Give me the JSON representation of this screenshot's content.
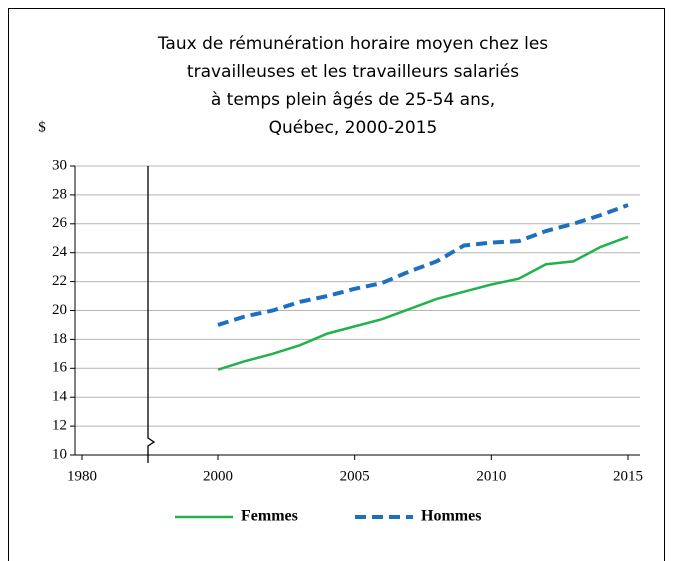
{
  "chart_data": {
    "type": "line",
    "title": [
      "Taux de rémunération horaire moyen chez les",
      "travailleuses et les travailleurs salariés",
      "à temps plein âgés de 25-54 ans,",
      "Québec, 2000-2015"
    ],
    "y_label": "$",
    "x": [
      2000,
      2001,
      2002,
      2003,
      2004,
      2005,
      2006,
      2007,
      2008,
      2009,
      2010,
      2011,
      2012,
      2013,
      2014,
      2015
    ],
    "series": [
      {
        "name": "Femmes",
        "color": "#21b24b",
        "dashed": false,
        "values": [
          15.9,
          16.5,
          17.0,
          17.6,
          18.4,
          18.9,
          19.4,
          20.1,
          20.8,
          21.3,
          21.8,
          22.2,
          23.2,
          23.4,
          24.4,
          25.1
        ]
      },
      {
        "name": "Hommes",
        "color": "#1f6fc1",
        "dashed": true,
        "values": [
          19.0,
          19.6,
          20.0,
          20.6,
          21.0,
          21.5,
          21.9,
          22.7,
          23.4,
          24.5,
          24.7,
          24.8,
          25.5,
          26.0,
          26.6,
          27.3
        ]
      }
    ],
    "xlim": [
      1980,
      2015
    ],
    "x_break": [
      1980,
      2000
    ],
    "xticks": [
      1980,
      2000,
      2005,
      2010,
      2015
    ],
    "ylim": [
      10,
      30
    ],
    "yticks": [
      10,
      12,
      14,
      16,
      18,
      20,
      22,
      24,
      26,
      28,
      30
    ],
    "grid": true,
    "legend": "bottom"
  }
}
